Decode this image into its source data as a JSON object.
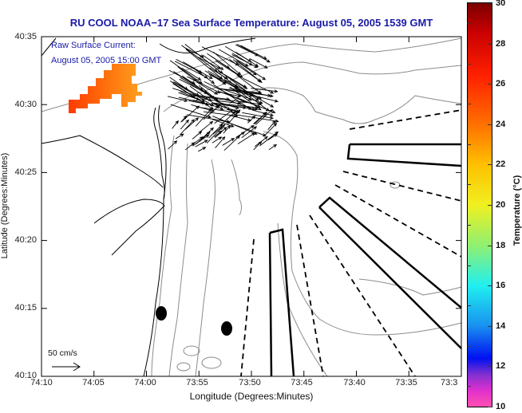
{
  "title": "RU COOL  NOAA−17  Sea Surface Temperature:  August 05, 2005 1539 GMT",
  "overlay": {
    "line1": "Raw Surface Current:",
    "line2": "August 05, 2005 15:00 GMT"
  },
  "scale_vector": {
    "label": "50 cm/s",
    "speed_cm_s": 50
  },
  "axes": {
    "xlabel": "Longitude (Degrees:Minutes)",
    "ylabel": "Latitude (Degrees:Minutes)",
    "xticks": [
      "74:10",
      "74:05",
      "74:00",
      "73:55",
      "73:50",
      "73:45",
      "73:40",
      "73:35",
      "73:3"
    ],
    "yticks": [
      "40:35",
      "40:30",
      "40:25",
      "40:20",
      "40:15",
      "40:10"
    ]
  },
  "colorbar": {
    "label": "Temperature (°C)",
    "ticks": [
      "30",
      "28",
      "26",
      "24",
      "22",
      "20",
      "18",
      "16",
      "14",
      "12",
      "10"
    ],
    "range": [
      10,
      30
    ]
  },
  "chart_data": {
    "type": "map",
    "title": "RU COOL  NOAA−17  Sea Surface Temperature:  August 05, 2005 1539 GMT",
    "xlabel": "Longitude (Degrees:Minutes)",
    "ylabel": "Latitude (Degrees:Minutes)",
    "xlim": [
      "74:10",
      "73:30"
    ],
    "ylim": [
      "40:10",
      "40:35"
    ],
    "sst_patch_temperature_c": [
      25,
      27
    ],
    "stations": 2,
    "colors": {
      "title": "#1a1aa8",
      "coast": "#000000",
      "bathymetry": "#8c8c8c"
    }
  }
}
